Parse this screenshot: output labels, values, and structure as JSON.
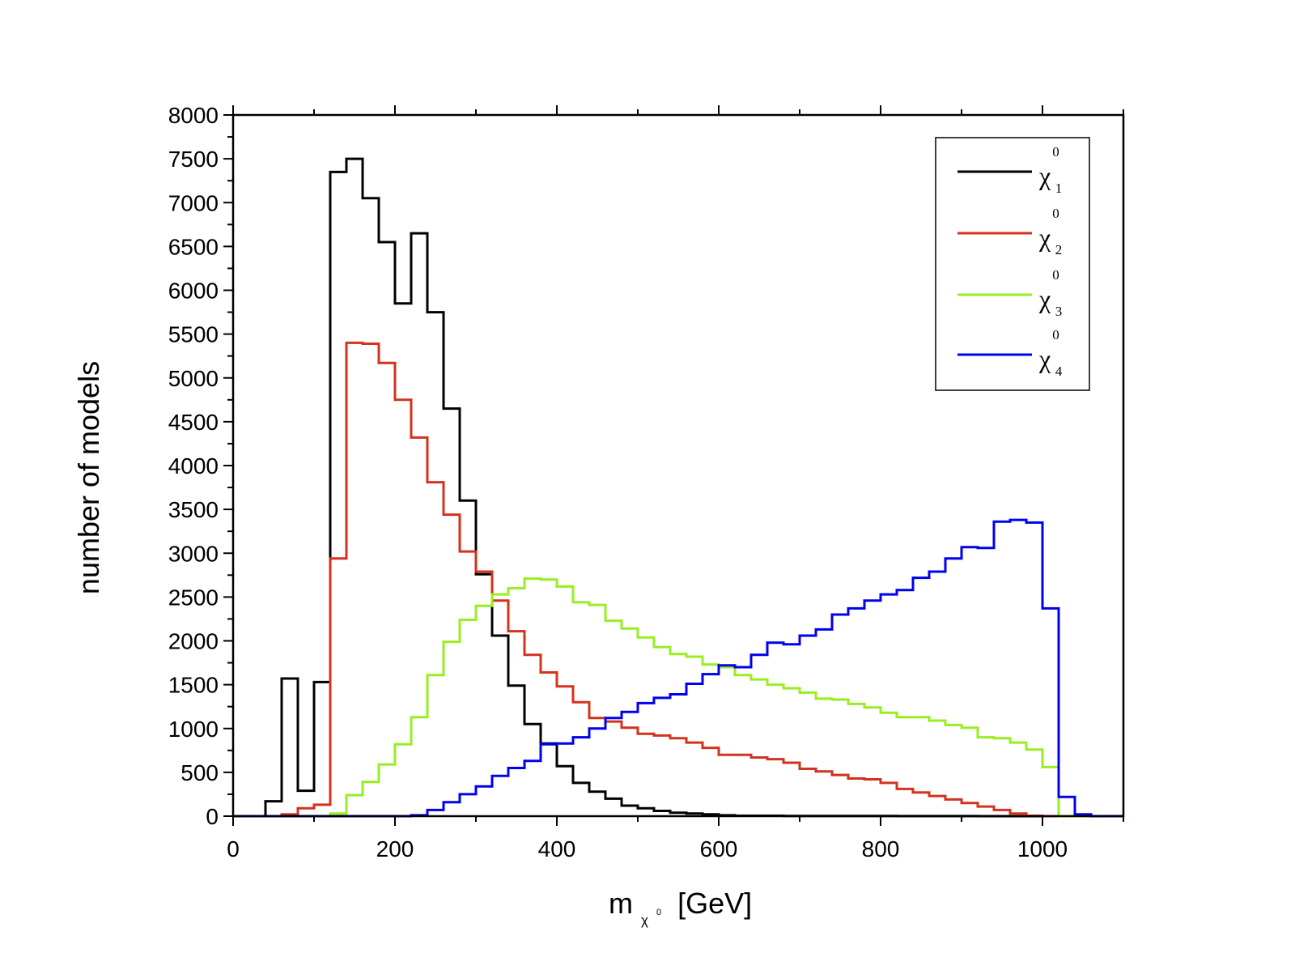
{
  "chart_data": {
    "type": "line",
    "style": "step-histogram",
    "xlabel": "m",
    "xlabel_sub": "χ",
    "xlabel_sub_sup": "0",
    "xlabel_unit": "[GeV]",
    "ylabel": "number of models",
    "xlim": [
      0,
      1100
    ],
    "ylim": [
      0,
      8000
    ],
    "xticks": [
      0,
      200,
      400,
      600,
      800,
      1000
    ],
    "yticks": [
      0,
      500,
      1000,
      1500,
      2000,
      2500,
      3000,
      3500,
      4000,
      4500,
      5000,
      5500,
      6000,
      6500,
      7000,
      7500,
      8000
    ],
    "grid": false,
    "legend_position": "top-right",
    "bin_edges": [
      0,
      20,
      40,
      60,
      80,
      100,
      120,
      140,
      160,
      180,
      200,
      220,
      240,
      260,
      280,
      300,
      320,
      340,
      360,
      380,
      400,
      420,
      440,
      460,
      480,
      500,
      520,
      540,
      560,
      580,
      600,
      620,
      640,
      660,
      680,
      700,
      720,
      740,
      760,
      780,
      800,
      820,
      840,
      860,
      880,
      900,
      920,
      940,
      960,
      980,
      1000,
      1020,
      1040,
      1060,
      1080,
      1100
    ],
    "series": [
      {
        "symbol": "χ",
        "sub": "1",
        "sup": "0",
        "color": "#000000",
        "values": [
          0,
          0,
          170,
          1570,
          290,
          1530,
          7350,
          7500,
          7050,
          6550,
          5850,
          6650,
          5750,
          4650,
          3600,
          2760,
          2060,
          1490,
          1050,
          830,
          570,
          380,
          280,
          200,
          120,
          90,
          60,
          40,
          30,
          20,
          10,
          5,
          5,
          5,
          3,
          3,
          3,
          2,
          2,
          2,
          2,
          1,
          1,
          1,
          1,
          1,
          0,
          0,
          0,
          0,
          0,
          0,
          0,
          0,
          0
        ]
      },
      {
        "symbol": "χ",
        "sub": "2",
        "sup": "0",
        "color": "#d2321e",
        "values": [
          0,
          0,
          0,
          20,
          90,
          130,
          2940,
          5400,
          5390,
          5170,
          4750,
          4320,
          3810,
          3440,
          3020,
          2790,
          2460,
          2110,
          1840,
          1640,
          1480,
          1300,
          1120,
          1080,
          1010,
          940,
          920,
          890,
          840,
          780,
          700,
          700,
          670,
          650,
          610,
          540,
          510,
          470,
          430,
          420,
          380,
          310,
          270,
          230,
          190,
          150,
          110,
          70,
          30,
          5,
          0,
          0,
          0,
          0,
          0
        ]
      },
      {
        "symbol": "χ",
        "sub": "3",
        "sup": "0",
        "color": "#99ee22",
        "values": [
          0,
          0,
          0,
          0,
          0,
          0,
          30,
          240,
          390,
          590,
          820,
          1130,
          1610,
          1990,
          2240,
          2400,
          2530,
          2600,
          2710,
          2700,
          2620,
          2440,
          2410,
          2230,
          2140,
          2040,
          1930,
          1850,
          1820,
          1730,
          1700,
          1610,
          1560,
          1500,
          1460,
          1410,
          1340,
          1330,
          1280,
          1240,
          1180,
          1130,
          1130,
          1090,
          1040,
          1010,
          900,
          890,
          840,
          760,
          560,
          0,
          0,
          0,
          0
        ]
      },
      {
        "symbol": "χ",
        "sub": "4",
        "sup": "0",
        "color": "#0000ee",
        "values": [
          0,
          0,
          0,
          0,
          0,
          0,
          0,
          0,
          0,
          0,
          0,
          10,
          70,
          160,
          250,
          340,
          460,
          550,
          630,
          820,
          830,
          900,
          1000,
          1120,
          1190,
          1290,
          1350,
          1390,
          1510,
          1620,
          1720,
          1700,
          1840,
          1980,
          1960,
          2060,
          2130,
          2300,
          2370,
          2460,
          2530,
          2580,
          2720,
          2790,
          2940,
          3070,
          3060,
          3360,
          3380,
          3350,
          2370,
          220,
          20,
          0,
          0
        ]
      }
    ]
  }
}
